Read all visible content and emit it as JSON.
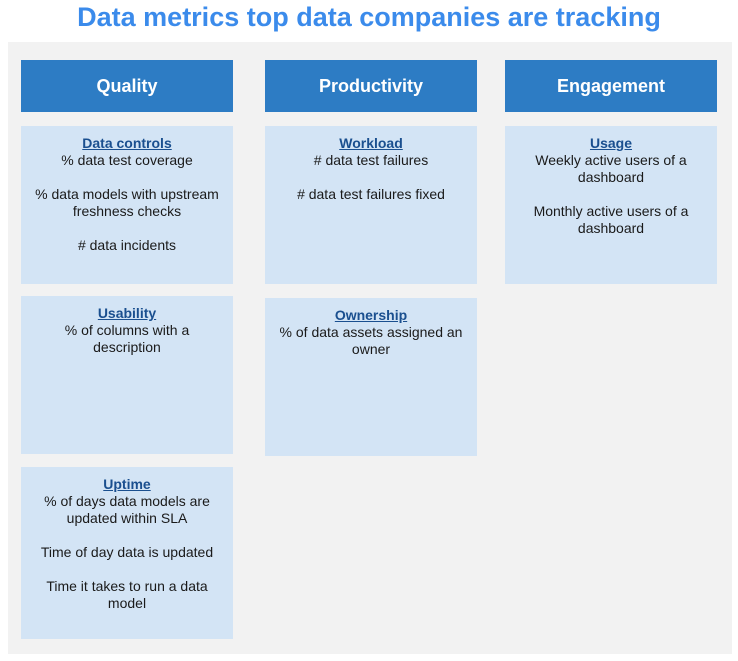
{
  "title": "Data metrics top data companies are tracking",
  "columns": [
    {
      "header": "Quality",
      "cards": [
        {
          "title": "Data controls",
          "metrics": [
            "% data test coverage",
            "% data models with upstream freshness checks",
            "# data incidents"
          ]
        },
        {
          "title": "Usability",
          "metrics": [
            "% of columns with a description"
          ]
        },
        {
          "title": "Uptime",
          "metrics": [
            "% of days data models are updated within SLA",
            "Time of day data is updated",
            "Time it takes to run a data model"
          ]
        }
      ]
    },
    {
      "header": "Productivity",
      "cards": [
        {
          "title": "Workload",
          "metrics": [
            "# data test failures",
            "# data test failures fixed"
          ]
        },
        {
          "title": "Ownership",
          "metrics": [
            "% of data assets assigned an owner"
          ]
        }
      ]
    },
    {
      "header": "Engagement",
      "cards": [
        {
          "title": "Usage",
          "metrics": [
            "Weekly active users of a dashboard",
            "Monthly active users of a dashboard"
          ]
        }
      ]
    }
  ],
  "colors": {
    "title": "#3b8beb",
    "header_bg": "#2d7cc4",
    "card_bg": "#d3e4f5",
    "card_title": "#1a4f8f",
    "panel_bg": "#f2f2f2"
  }
}
